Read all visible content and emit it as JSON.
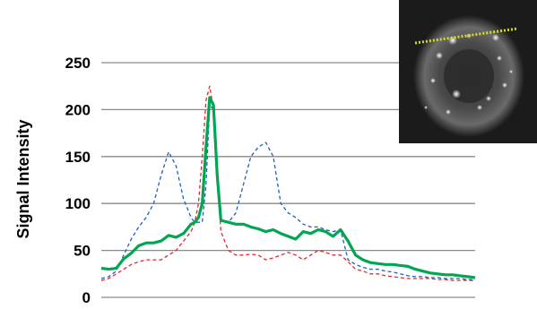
{
  "chart_data": {
    "type": "line",
    "title": "",
    "xlabel": "",
    "ylabel": "Signal Intensity",
    "ylim": [
      0,
      250
    ],
    "yticks": [
      0,
      50,
      100,
      150,
      200,
      250
    ],
    "grid": true,
    "legend": "none",
    "x": [
      0,
      2,
      4,
      6,
      8,
      10,
      12,
      14,
      16,
      18,
      20,
      22,
      24,
      25,
      26,
      27,
      28,
      29,
      30,
      31,
      32,
      34,
      36,
      38,
      40,
      42,
      44,
      46,
      48,
      50,
      52,
      54,
      56,
      58,
      60,
      62,
      64,
      66,
      68,
      70,
      72,
      74,
      76,
      78,
      80,
      82,
      84,
      86,
      88,
      90,
      92,
      94,
      96,
      98,
      100
    ],
    "series": [
      {
        "color": "#00a651",
        "style": "solid",
        "values": [
          31,
          30,
          31,
          41,
          47,
          55,
          58,
          58,
          60,
          66,
          64,
          68,
          78,
          80,
          85,
          100,
          160,
          213,
          205,
          130,
          82,
          80,
          78,
          78,
          75,
          73,
          70,
          72,
          68,
          65,
          62,
          70,
          68,
          72,
          70,
          65,
          72,
          60,
          45,
          40,
          37,
          36,
          35,
          35,
          34,
          33,
          30,
          28,
          26,
          25,
          24,
          24,
          23,
          22,
          21
        ]
      },
      {
        "color": "#1f5fbf",
        "style": "dashed",
        "values": [
          20,
          22,
          28,
          45,
          62,
          75,
          85,
          100,
          130,
          155,
          140,
          105,
          85,
          80,
          80,
          80,
          120,
          205,
          200,
          130,
          82,
          80,
          90,
          120,
          150,
          160,
          165,
          150,
          100,
          90,
          85,
          78,
          75,
          75,
          72,
          70,
          72,
          40,
          35,
          32,
          30,
          30,
          28,
          27,
          25,
          23,
          22,
          22,
          21,
          21,
          20,
          20,
          20,
          19,
          19
        ]
      },
      {
        "color": "#e0282d",
        "style": "dashed",
        "values": [
          18,
          20,
          25,
          30,
          35,
          38,
          40,
          40,
          40,
          45,
          50,
          60,
          70,
          80,
          100,
          150,
          210,
          225,
          200,
          130,
          70,
          50,
          45,
          45,
          46,
          45,
          40,
          42,
          45,
          48,
          45,
          40,
          45,
          50,
          48,
          45,
          45,
          38,
          30,
          28,
          25,
          25,
          23,
          22,
          21,
          20,
          20,
          20,
          20,
          19,
          19,
          18,
          18,
          18,
          18
        ]
      }
    ]
  },
  "inset": {
    "description_color": "#d9d92a"
  }
}
